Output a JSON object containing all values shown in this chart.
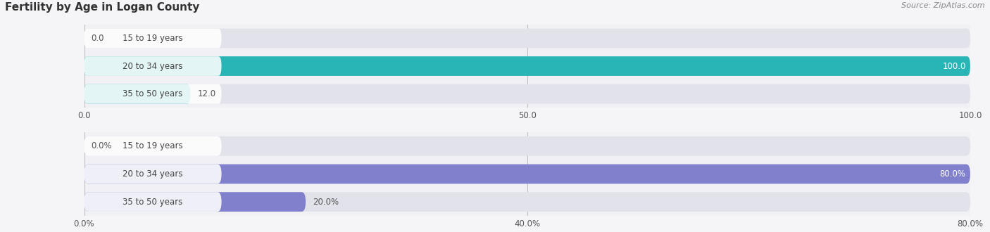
{
  "title": "Fertility by Age in Logan County",
  "source": "Source: ZipAtlas.com",
  "chart1": {
    "categories": [
      "15 to 19 years",
      "20 to 34 years",
      "35 to 50 years"
    ],
    "values": [
      0.0,
      100.0,
      12.0
    ],
    "xlim": [
      0,
      100
    ],
    "xticks": [
      0.0,
      50.0,
      100.0
    ],
    "bar_color_main": "#29b5b5",
    "bar_bg_color": "#e2e2ea"
  },
  "chart2": {
    "categories": [
      "15 to 19 years",
      "20 to 34 years",
      "35 to 50 years"
    ],
    "values": [
      0.0,
      80.0,
      20.0
    ],
    "xlim": [
      0,
      80
    ],
    "xticks": [
      0.0,
      40.0,
      80.0
    ],
    "bar_color_main": "#8080cc",
    "bar_bg_color": "#e2e2ea"
  },
  "label_fontsize": 8.5,
  "value_fontsize": 8.5,
  "title_fontsize": 11,
  "source_fontsize": 8,
  "fig_bg": "#f5f5f8",
  "ax_bg": "#f0f0f5"
}
